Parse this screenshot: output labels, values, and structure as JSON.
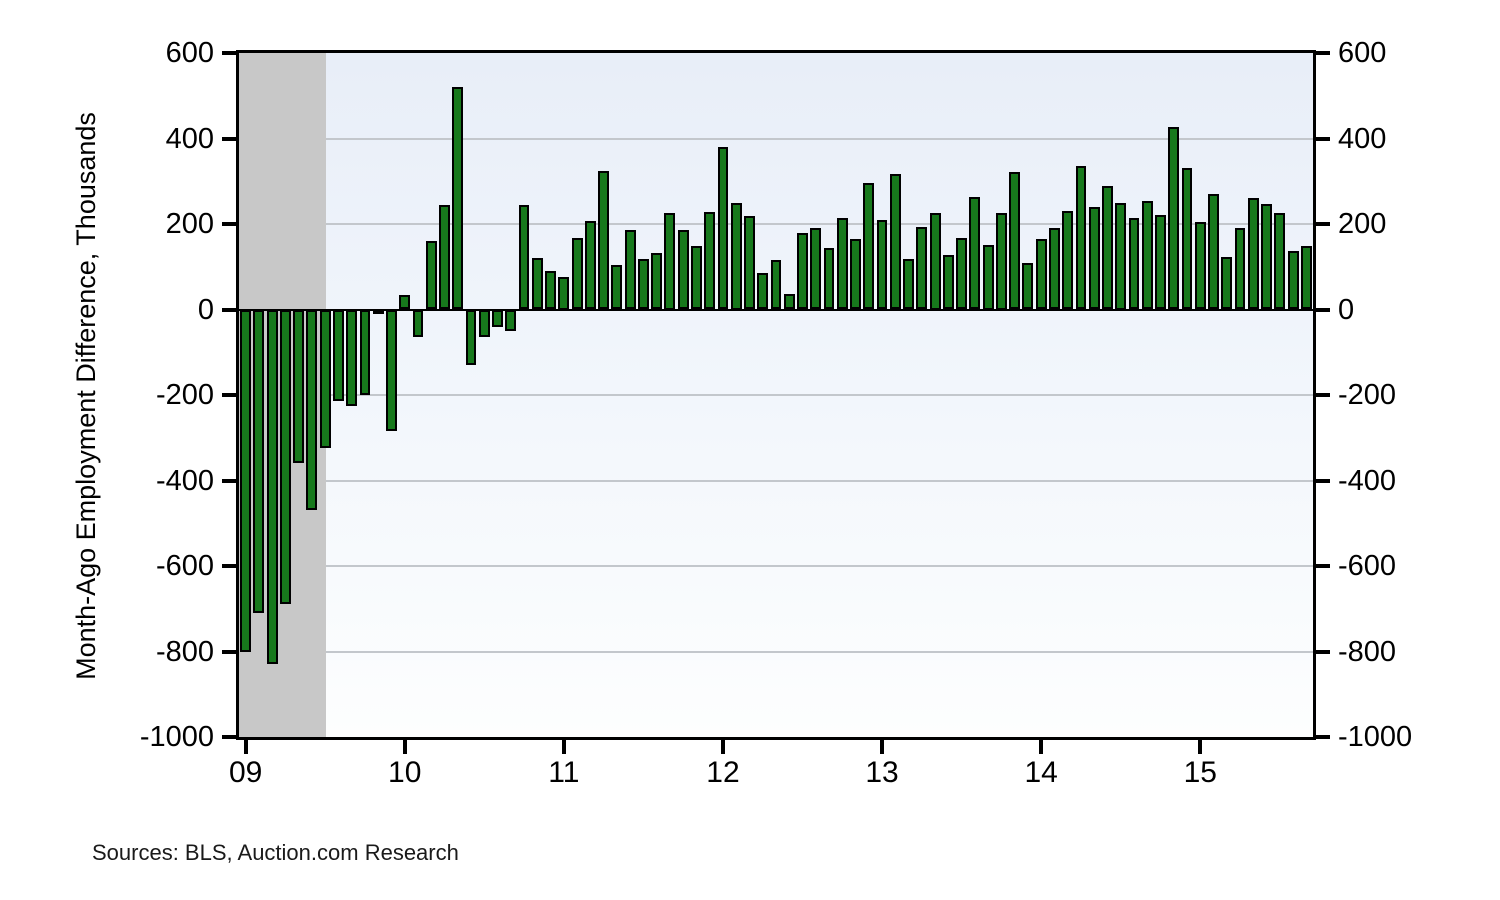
{
  "y_axis_title": "Month-Ago Employment Difference, Thousands",
  "sources_note": "Sources: BLS, Auction.com Research",
  "chart_data": {
    "type": "bar",
    "title": "",
    "xlabel": "",
    "ylabel": "Month-Ago Employment Difference, Thousands",
    "ylim": [
      -1000,
      600
    ],
    "y_ticks": [
      600,
      400,
      200,
      0,
      -200,
      -400,
      -600,
      -800,
      -1000
    ],
    "gridline_values": [
      400,
      200,
      -200,
      -400,
      -600,
      -800
    ],
    "x_tick_labels": [
      "09",
      "10",
      "11",
      "12",
      "13",
      "14",
      "15"
    ],
    "months_per_tick": 12,
    "legend": null,
    "grid": "horizontal",
    "recession_band": {
      "start_index": 0,
      "end_index": 6.55
    },
    "months": [
      "2009-01",
      "2009-02",
      "2009-03",
      "2009-04",
      "2009-05",
      "2009-06",
      "2009-07",
      "2009-08",
      "2009-09",
      "2009-10",
      "2009-11",
      "2009-12",
      "2010-01",
      "2010-02",
      "2010-03",
      "2010-04",
      "2010-05",
      "2010-06",
      "2010-07",
      "2010-08",
      "2010-09",
      "2010-10",
      "2010-11",
      "2010-12",
      "2011-01",
      "2011-02",
      "2011-03",
      "2011-04",
      "2011-05",
      "2011-06",
      "2011-07",
      "2011-08",
      "2011-09",
      "2011-10",
      "2011-11",
      "2011-12",
      "2012-01",
      "2012-02",
      "2012-03",
      "2012-04",
      "2012-05",
      "2012-06",
      "2012-07",
      "2012-08",
      "2012-09",
      "2012-10",
      "2012-11",
      "2012-12",
      "2013-01",
      "2013-02",
      "2013-03",
      "2013-04",
      "2013-05",
      "2013-06",
      "2013-07",
      "2013-08",
      "2013-09",
      "2013-10",
      "2013-11",
      "2013-12",
      "2014-01",
      "2014-02",
      "2014-03",
      "2014-04",
      "2014-05",
      "2014-06",
      "2014-07",
      "2014-08",
      "2014-09",
      "2014-10",
      "2014-11",
      "2014-12",
      "2015-01",
      "2015-02",
      "2015-03",
      "2015-04",
      "2015-05",
      "2015-06",
      "2015-07",
      "2015-08",
      "2015-09"
    ],
    "values": [
      -800,
      -710,
      -830,
      -690,
      -360,
      -470,
      -325,
      -215,
      -225,
      -200,
      -10,
      -285,
      35,
      -65,
      160,
      245,
      520,
      -130,
      -65,
      -40,
      -50,
      245,
      120,
      90,
      75,
      167,
      207,
      323,
      105,
      187,
      117,
      132,
      225,
      185,
      148,
      229,
      381,
      250,
      218,
      86,
      115,
      37,
      178,
      191,
      143,
      213,
      166,
      297,
      209,
      318,
      117,
      192,
      225,
      127,
      168,
      262,
      150,
      225,
      322,
      109,
      166,
      191,
      230,
      335,
      239,
      289,
      250,
      213,
      253,
      221,
      427,
      332,
      205,
      270,
      122,
      190,
      260,
      246,
      226,
      136,
      148
    ],
    "colors": {
      "bar_fill": "#17791c",
      "bar_stroke": "#000000",
      "axis": "#000000",
      "gridline": "#c3c7cc",
      "recession_band": "#c8c8c8",
      "plot_bg_top": "#e8eef8",
      "plot_bg_bottom": "#fdfefe",
      "page_bg": "#ffffff"
    }
  }
}
